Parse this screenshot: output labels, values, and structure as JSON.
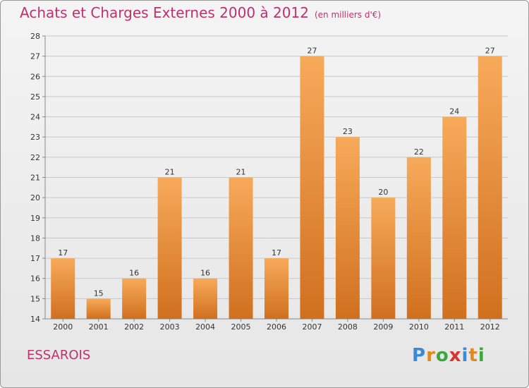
{
  "title": "Achats et Charges Externes 2000 à 2012",
  "subtitle": "(en milliers d'€)",
  "place": "ESSAROIS",
  "logo": {
    "letters": [
      "P",
      "r",
      "o",
      "x",
      "i",
      "t",
      "i"
    ],
    "colors": [
      "#3a8ad6",
      "#e08a1e",
      "#3ca83c",
      "#d8342e",
      "#3a8ad6",
      "#e08a1e",
      "#3ca83c"
    ]
  },
  "colors": {
    "title": "#c0306a",
    "bar_light": "#f7aa5a",
    "bar_dark": "#d0701f",
    "grid": "#c8c8c8",
    "axis": "#888888"
  },
  "chart_data": {
    "type": "bar",
    "categories": [
      "2000",
      "2001",
      "2002",
      "2003",
      "2004",
      "2005",
      "2006",
      "2007",
      "2008",
      "2009",
      "2010",
      "2011",
      "2012"
    ],
    "values": [
      17,
      15,
      16,
      21,
      16,
      21,
      17,
      27,
      23,
      20,
      22,
      24,
      27
    ],
    "ylim": [
      14,
      28
    ],
    "yticks": [
      14,
      15,
      16,
      17,
      18,
      19,
      20,
      21,
      22,
      23,
      24,
      25,
      26,
      27,
      28
    ],
    "grid": true,
    "xlabel": "",
    "ylabel": ""
  }
}
